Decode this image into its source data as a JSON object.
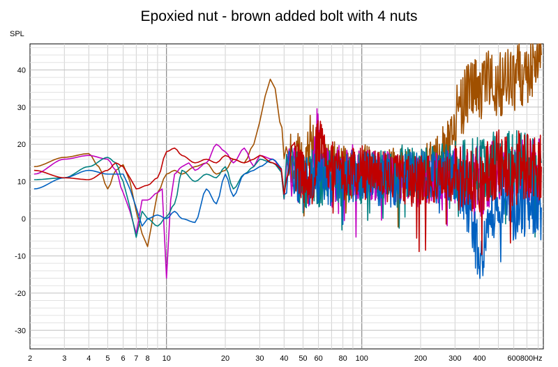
{
  "chart_data": {
    "type": "line",
    "title": "Epoxied nut - brown added bolt with 4 nuts",
    "ylabel": "SPL",
    "xlabel": "Hz",
    "x_scale": "log",
    "xlim": [
      2,
      850
    ],
    "ylim": [
      -35,
      47
    ],
    "grid": true,
    "x_ticks": [
      2,
      3,
      4,
      5,
      6,
      7,
      8,
      10,
      20,
      30,
      40,
      50,
      60,
      80,
      100,
      200,
      300,
      400,
      600,
      800
    ],
    "x_tick_labels": [
      "2",
      "3",
      "4",
      "5",
      "6",
      "7",
      "8",
      "10",
      "20",
      "30",
      "40",
      "50",
      "60",
      "80",
      "100",
      "200",
      "300",
      "400",
      "600",
      "800Hz"
    ],
    "y_ticks": [
      40,
      30,
      20,
      10,
      0,
      -10,
      -20,
      -30
    ],
    "y_tick_labels": [
      "40",
      "30",
      "20",
      "10",
      "0",
      "-10",
      "-20",
      "-30"
    ],
    "series": [
      {
        "color": "#a05000",
        "x": [
          2.1,
          3,
          4,
          4.5,
          5,
          5.5,
          6,
          6.5,
          7,
          7.5,
          8,
          8.5,
          9,
          10,
          11,
          12,
          14,
          16,
          18,
          20,
          22,
          25,
          28,
          30,
          32,
          34,
          36,
          38,
          40,
          42,
          45,
          48,
          50,
          55,
          60,
          70,
          80,
          90,
          100,
          120,
          150,
          180,
          200,
          230,
          260,
          280,
          300,
          320,
          350,
          380,
          400,
          430,
          450,
          500,
          550,
          600,
          650,
          700,
          750,
          800,
          830
        ],
        "y": [
          14,
          16.5,
          17.5,
          14,
          8,
          13,
          14.5,
          10,
          2,
          -4,
          -7.5,
          0,
          7,
          12,
          13,
          12,
          14,
          15,
          12,
          13,
          16,
          15,
          20,
          26,
          33,
          37.5,
          35,
          26,
          23,
          18,
          13,
          17,
          12,
          22,
          17,
          14,
          13,
          12,
          13,
          12,
          12,
          13,
          11.5,
          15,
          18,
          21,
          26,
          30,
          33,
          35,
          34.5,
          35.5,
          37,
          36,
          37.5,
          38,
          39,
          40,
          41,
          43,
          44
        ]
      },
      {
        "color": "#c000c0",
        "x": [
          2.1,
          3,
          4,
          5,
          5.5,
          6,
          6.5,
          7,
          7.5,
          8,
          9,
          9.5,
          10,
          10.5,
          11,
          12,
          13,
          14,
          16,
          18,
          20,
          22,
          25,
          28,
          30,
          35,
          40,
          45,
          50,
          55,
          60,
          62,
          70,
          80,
          100,
          150,
          200,
          300,
          400,
          500,
          600,
          700,
          830
        ],
        "y": [
          12,
          16,
          17,
          16,
          13,
          7,
          2,
          -4,
          5,
          5,
          7,
          8,
          -16,
          5,
          12,
          14,
          15,
          13,
          15,
          20,
          18,
          15,
          19,
          14,
          17,
          16,
          12,
          13,
          8,
          10,
          26,
          15,
          10,
          14,
          12,
          11,
          10,
          12,
          11,
          12,
          13,
          12,
          13
        ]
      },
      {
        "color": "#008080",
        "x": [
          2.1,
          3,
          4,
          5,
          5.5,
          6,
          6.5,
          7,
          7.5,
          8,
          9,
          10,
          11,
          12,
          14,
          16,
          18,
          20,
          22,
          25,
          28,
          30,
          35,
          40,
          45,
          50,
          55,
          60,
          70,
          80,
          100,
          150,
          200,
          300,
          400,
          500,
          600,
          700,
          830
        ],
        "y": [
          10.5,
          11,
          14,
          16.5,
          15,
          10,
          3,
          -5,
          2,
          0,
          -2,
          0.5,
          4,
          13,
          10,
          12,
          11,
          14,
          8,
          12,
          14,
          16,
          15,
          12,
          13,
          8,
          12,
          10,
          12,
          10,
          11,
          13,
          12,
          14,
          13,
          15,
          15,
          14,
          15
        ]
      },
      {
        "color": "#0060c0",
        "x": [
          2.1,
          3,
          4,
          5,
          6,
          6.5,
          7,
          7.5,
          8,
          9,
          10,
          11,
          12,
          14,
          16,
          18,
          20,
          22,
          25,
          28,
          30,
          35,
          40,
          45,
          50,
          55,
          60,
          70,
          80,
          100,
          150,
          200,
          300,
          350,
          400,
          450,
          500,
          550,
          600,
          700,
          830
        ],
        "y": [
          8,
          11,
          13,
          12,
          12,
          8,
          3,
          -2,
          0,
          1,
          0,
          2,
          0,
          -1,
          8,
          4,
          12,
          6,
          12,
          13,
          14,
          16,
          13,
          10,
          12,
          10,
          11,
          9,
          12,
          11,
          10,
          12,
          11,
          5,
          -10,
          2,
          5,
          4,
          3,
          5,
          3
        ]
      },
      {
        "color": "#c00000",
        "x": [
          2.1,
          3,
          4,
          5,
          5.5,
          6,
          6.5,
          7,
          8,
          9,
          10,
          11,
          12,
          14,
          16,
          18,
          20,
          22,
          25,
          28,
          30,
          35,
          40,
          45,
          50,
          55,
          60,
          70,
          80,
          100,
          150,
          200,
          300,
          400,
          450,
          500,
          600,
          700,
          830
        ],
        "y": [
          13,
          11,
          10.5,
          13,
          15,
          14,
          11,
          8,
          9,
          11,
          18,
          19,
          17,
          15,
          16,
          15,
          17,
          16,
          15,
          16,
          17,
          15,
          13,
          14,
          12,
          10,
          20,
          14,
          12,
          13,
          11,
          10,
          11,
          10,
          12,
          15,
          15,
          14,
          14
        ]
      }
    ]
  }
}
